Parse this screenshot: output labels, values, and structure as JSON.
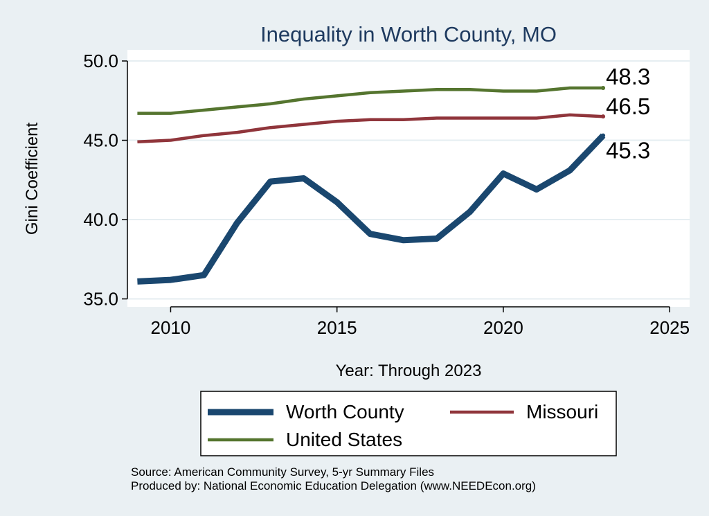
{
  "chart_data": {
    "type": "line",
    "title": "Inequality in Worth County, MO",
    "xlabel": "Year: Through 2023",
    "ylabel": "Gini Coefficient",
    "xlim": [
      2008.7,
      2025.6
    ],
    "ylim": [
      34.5,
      50.7
    ],
    "xticks": [
      2010,
      2015,
      2020,
      2025
    ],
    "xtick_labels": [
      "2010",
      "2015",
      "2020",
      "2025"
    ],
    "yticks": [
      35,
      40,
      45,
      50
    ],
    "ytick_labels": [
      "35.0",
      "40.0",
      "45.0",
      "50.0"
    ],
    "grid": true,
    "legend_position": "bottom",
    "series": [
      {
        "name": "Worth County",
        "color": "#1a476f",
        "x": [
          2009,
          2010,
          2011,
          2012,
          2013,
          2014,
          2015,
          2016,
          2017,
          2018,
          2019,
          2020,
          2021,
          2022,
          2023
        ],
        "values": [
          36.1,
          36.2,
          36.5,
          39.8,
          42.4,
          42.6,
          41.1,
          39.1,
          38.7,
          38.8,
          40.5,
          42.9,
          41.9,
          43.1,
          45.3
        ],
        "end_label": "45.3"
      },
      {
        "name": "Missouri",
        "color": "#90353b",
        "x": [
          2009,
          2010,
          2011,
          2012,
          2013,
          2014,
          2015,
          2016,
          2017,
          2018,
          2019,
          2020,
          2021,
          2022,
          2023
        ],
        "values": [
          44.9,
          45.0,
          45.3,
          45.5,
          45.8,
          46.0,
          46.2,
          46.3,
          46.3,
          46.4,
          46.4,
          46.4,
          46.4,
          46.6,
          46.5
        ],
        "end_label": "46.5"
      },
      {
        "name": "United States",
        "color": "#55752f",
        "x": [
          2009,
          2010,
          2011,
          2012,
          2013,
          2014,
          2015,
          2016,
          2017,
          2018,
          2019,
          2020,
          2021,
          2022,
          2023
        ],
        "values": [
          46.7,
          46.7,
          46.9,
          47.1,
          47.3,
          47.6,
          47.8,
          48.0,
          48.1,
          48.2,
          48.2,
          48.1,
          48.1,
          48.3,
          48.3
        ],
        "end_label": "48.3"
      }
    ]
  },
  "footer": {
    "source": "Source: American Community Survey, 5-yr Summary Files",
    "produced_by": "Produced by: National Economic Education Delegation (www.NEEDEcon.org)"
  }
}
